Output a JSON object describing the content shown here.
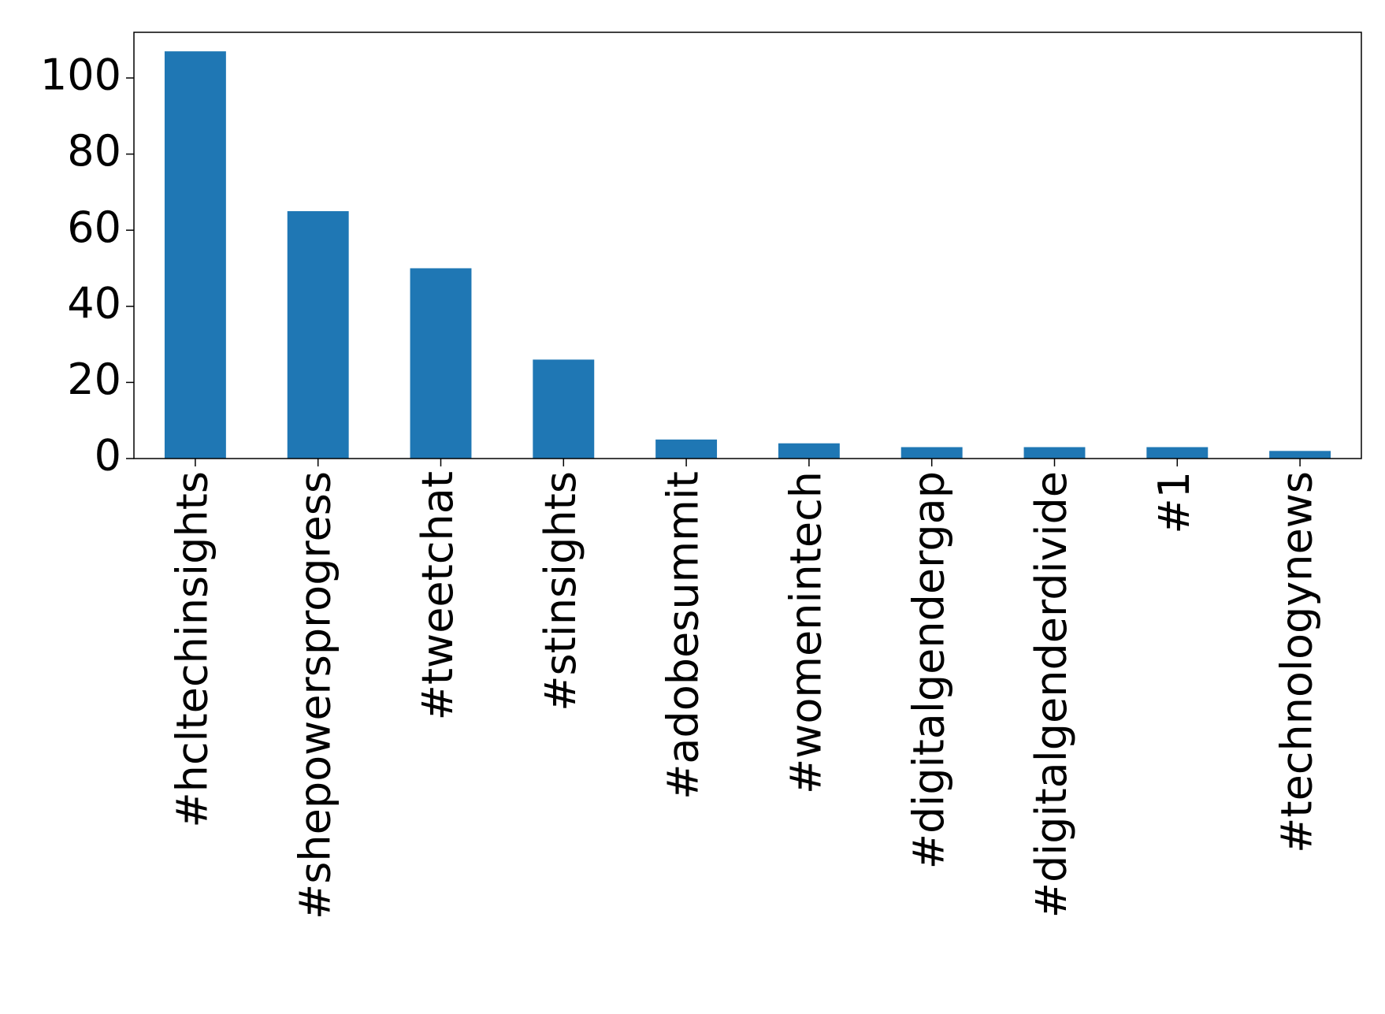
{
  "chart_data": {
    "type": "bar",
    "categories": [
      "#hcltechinsights",
      "#shepowersprogress",
      "#tweetchat",
      "#stinsights",
      "#adobesummit",
      "#womenintech",
      "#digitalgendergap",
      "#digitalgenderdivide",
      "#1",
      "#technologynews"
    ],
    "values": [
      107,
      65,
      50,
      26,
      5,
      4,
      3,
      3,
      3,
      2
    ],
    "color": "#1f77b4",
    "ylim": [
      0,
      112
    ],
    "yticks": [
      0,
      20,
      40,
      60,
      80,
      100
    ],
    "grid": false
  }
}
